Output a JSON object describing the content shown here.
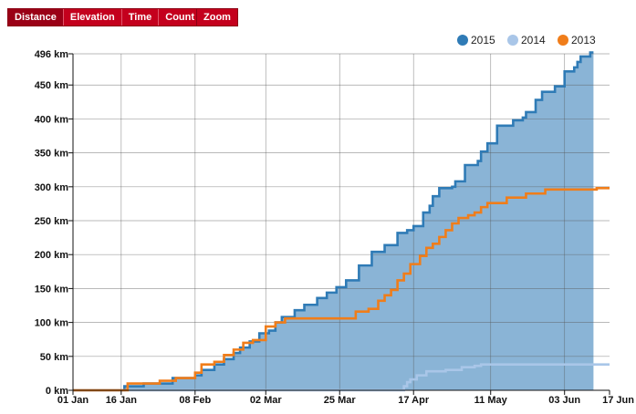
{
  "toolbar": {
    "tabs": [
      {
        "label": "Distance",
        "active": true
      },
      {
        "label": "Elevation",
        "active": false
      },
      {
        "label": "Time",
        "active": false
      },
      {
        "label": "Count",
        "active": false
      }
    ],
    "zoom_label": "Zoom"
  },
  "colors": {
    "series_2015": "#2f7bb6",
    "series_2015_fill": "#8ab4d6",
    "series_2014": "#a9c6e8",
    "series_2013": "#f07d1a",
    "button": "#c4001d"
  },
  "chart_data": {
    "type": "area",
    "title": "",
    "xlabel": "",
    "ylabel": "",
    "x_unit": "day of year",
    "xlim": [
      1,
      168
    ],
    "ylim": [
      0,
      496
    ],
    "x_ticks": [
      {
        "day": 1,
        "label": "01 Jan"
      },
      {
        "day": 16,
        "label": "16 Jan"
      },
      {
        "day": 39,
        "label": "08 Feb"
      },
      {
        "day": 61,
        "label": "02 Mar"
      },
      {
        "day": 84,
        "label": "25 Mar"
      },
      {
        "day": 107,
        "label": "17 Apr"
      },
      {
        "day": 131,
        "label": "11 May"
      },
      {
        "day": 154,
        "label": "03 Jun"
      },
      {
        "day": 168,
        "label": "17 Jun"
      }
    ],
    "y_ticks": [
      {
        "value": 0,
        "label": "0 km"
      },
      {
        "value": 50,
        "label": "50 km"
      },
      {
        "value": 100,
        "label": "100 km"
      },
      {
        "value": 150,
        "label": "150 km"
      },
      {
        "value": 200,
        "label": "200 km"
      },
      {
        "value": 250,
        "label": "250 km"
      },
      {
        "value": 300,
        "label": "300 km"
      },
      {
        "value": 350,
        "label": "350 km"
      },
      {
        "value": 400,
        "label": "400 km"
      },
      {
        "value": 450,
        "label": "450 km"
      },
      {
        "value": 496,
        "label": "496 km"
      }
    ],
    "legend_position": "top-right",
    "grid": true,
    "series": [
      {
        "name": "2015",
        "fill": true,
        "x": [
          1,
          17,
          23,
          32,
          39,
          41,
          45,
          48,
          51,
          53,
          56,
          59,
          62,
          64,
          66,
          70,
          73,
          77,
          80,
          83,
          86,
          90,
          94,
          98,
          102,
          105,
          107,
          110,
          112,
          113,
          115,
          119,
          120,
          123,
          127,
          128,
          130,
          133,
          138,
          141,
          142,
          145,
          147,
          151,
          154,
          157,
          158,
          159,
          162,
          163
        ],
        "y": [
          0,
          6,
          10,
          18,
          22,
          30,
          38,
          46,
          55,
          63,
          72,
          84,
          88,
          100,
          108,
          118,
          126,
          136,
          144,
          152,
          162,
          184,
          204,
          214,
          232,
          236,
          242,
          262,
          272,
          286,
          298,
          300,
          308,
          332,
          338,
          352,
          364,
          390,
          398,
          402,
          410,
          428,
          440,
          448,
          470,
          476,
          484,
          492,
          498,
          498
        ]
      },
      {
        "name": "2014",
        "fill": false,
        "x": [
          1,
          84,
          104,
          105,
          106,
          108,
          111,
          117,
          122,
          126,
          128,
          168
        ],
        "y": [
          0,
          0,
          6,
          12,
          16,
          22,
          28,
          30,
          34,
          36,
          38,
          38
        ]
      },
      {
        "name": "2013",
        "fill": false,
        "x": [
          1,
          18,
          28,
          33,
          39,
          41,
          45,
          48,
          51,
          54,
          57,
          61,
          64,
          67,
          86,
          89,
          93,
          96,
          98,
          100,
          102,
          104,
          106,
          109,
          111,
          113,
          115,
          117,
          119,
          121,
          124,
          126,
          128,
          130,
          136,
          142,
          148,
          164,
          168
        ],
        "y": [
          0,
          10,
          14,
          18,
          26,
          38,
          42,
          52,
          60,
          70,
          74,
          94,
          100,
          106,
          106,
          116,
          120,
          132,
          140,
          148,
          162,
          172,
          186,
          198,
          210,
          216,
          226,
          236,
          246,
          254,
          258,
          262,
          270,
          276,
          284,
          290,
          296,
          298,
          298
        ]
      }
    ]
  }
}
